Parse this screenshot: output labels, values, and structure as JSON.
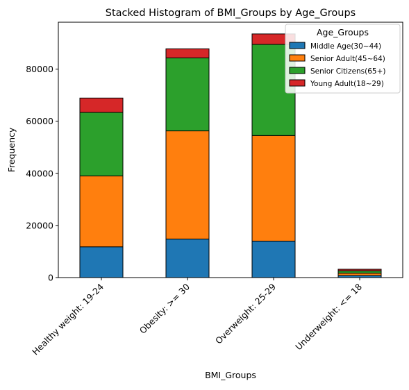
{
  "chart_data": {
    "type": "bar",
    "stacked": true,
    "title": "Stacked Histogram of BMI_Groups by Age_Groups",
    "xlabel": "BMI_Groups",
    "ylabel": "Frequency",
    "categories": [
      "Healthy weight: 19-24",
      "Obesity: >= 30",
      "Overweight: 25-29",
      "Underweight: <= 18"
    ],
    "series": [
      {
        "name": "Middle Age(30~44)",
        "color": "#1f77b4",
        "values": [
          11800,
          14800,
          14000,
          800
        ]
      },
      {
        "name": "Senior Adult(45~64)",
        "color": "#ff7f0e",
        "values": [
          27200,
          41500,
          40500,
          900
        ]
      },
      {
        "name": "Senior Citizens(65+)",
        "color": "#2ca02c",
        "values": [
          24400,
          28000,
          35000,
          900
        ]
      },
      {
        "name": "Young Adult(18~29)",
        "color": "#d62728",
        "values": [
          5500,
          3500,
          4000,
          600
        ]
      }
    ],
    "ylim": [
      0,
      98000
    ],
    "yticks": [
      0,
      20000,
      40000,
      60000,
      80000
    ],
    "ytick_labels": [
      "0",
      "20000",
      "40000",
      "60000",
      "80000"
    ],
    "grid": false,
    "legend": {
      "title": "Age_Groups",
      "placement": "top-right"
    }
  }
}
